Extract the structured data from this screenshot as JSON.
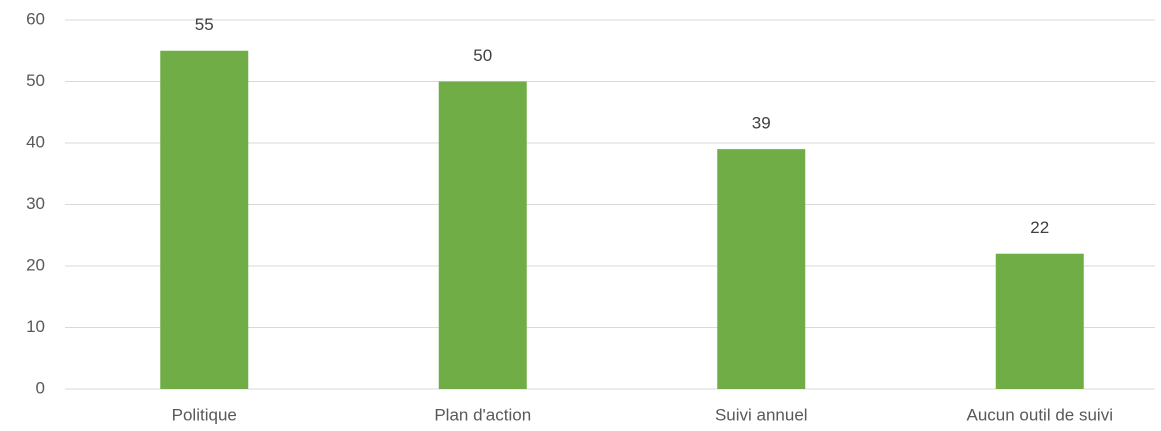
{
  "chart_data": {
    "type": "bar",
    "categories": [
      "Politique",
      "Plan d'action",
      "Suivi annuel",
      "Aucun outil de suivi"
    ],
    "values": [
      55,
      50,
      39,
      22
    ],
    "color": "#70ad47",
    "ylim": [
      0,
      60
    ],
    "yticks": [
      0,
      10,
      20,
      30,
      40,
      50,
      60
    ],
    "grid": true
  }
}
